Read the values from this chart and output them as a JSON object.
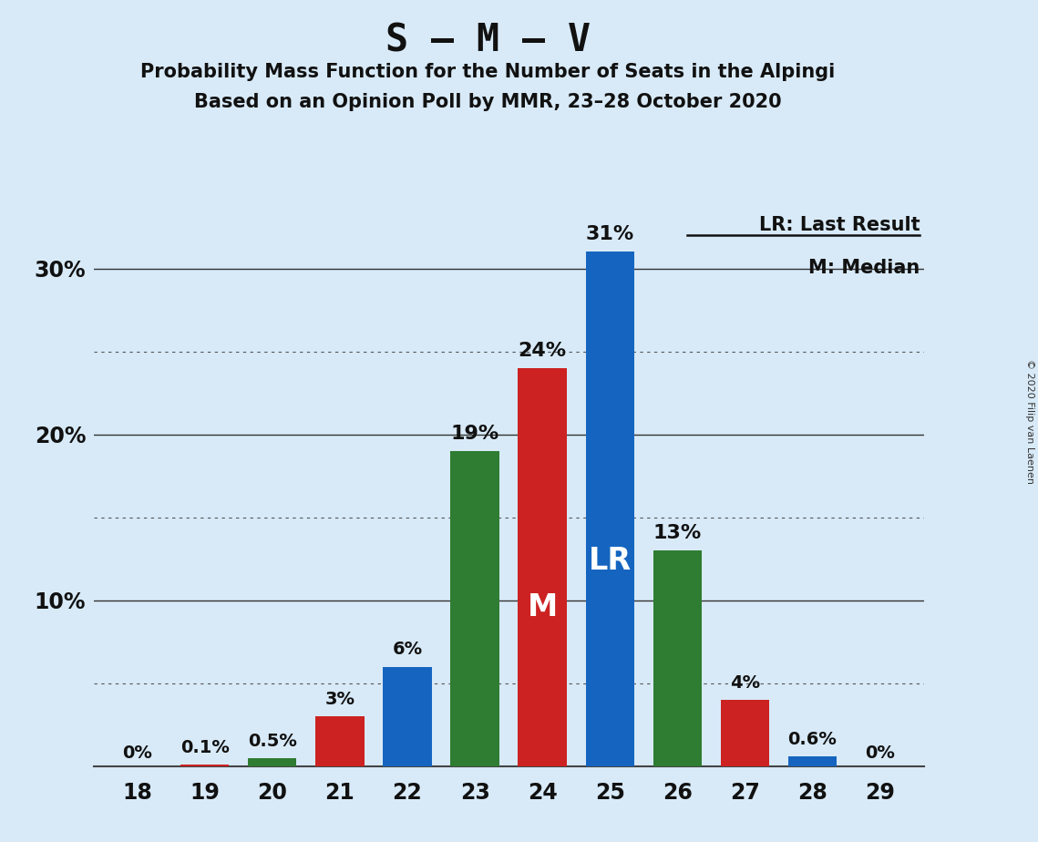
{
  "title": "S – M – V",
  "subtitle1": "Probability Mass Function for the Number of Seats in the Alpingi",
  "subtitle2": "Based on an Opinion Poll by MMR, 23–28 October 2020",
  "copyright": "© 2020 Filip van Laenen",
  "seats": [
    18,
    19,
    20,
    21,
    22,
    23,
    24,
    25,
    26,
    27,
    28,
    29
  ],
  "values": [
    0.0,
    0.1,
    0.5,
    3.0,
    6.0,
    19.0,
    24.0,
    31.0,
    13.0,
    4.0,
    0.6,
    0.0
  ],
  "labels": [
    "0%",
    "0.1%",
    "0.5%",
    "3%",
    "6%",
    "19%",
    "24%",
    "31%",
    "13%",
    "4%",
    "0.6%",
    "0%"
  ],
  "bar_colors": [
    "#1565c0",
    "#cc2222",
    "#2e7d32",
    "#cc2222",
    "#1565c0",
    "#2e7d32",
    "#cc2222",
    "#1565c0",
    "#2e7d32",
    "#cc2222",
    "#1565c0",
    "#1565c0"
  ],
  "lr_seat": 25,
  "median_seat": 24,
  "lr_label": "LR",
  "median_label": "M",
  "legend_lr": "LR: Last Result",
  "legend_m": "M: Median",
  "ylim_max": 34,
  "major_gridlines": [
    10,
    20,
    30
  ],
  "minor_gridlines": [
    5,
    15,
    25
  ],
  "background_color": "#d8eaf8",
  "bar_width": 0.72,
  "title_fontsize": 30,
  "subtitle_fontsize": 15,
  "label_fontsize_large": 16,
  "label_fontsize_small": 14,
  "inner_label_fontsize": 24,
  "axis_fontsize": 17,
  "legend_fontsize": 15
}
